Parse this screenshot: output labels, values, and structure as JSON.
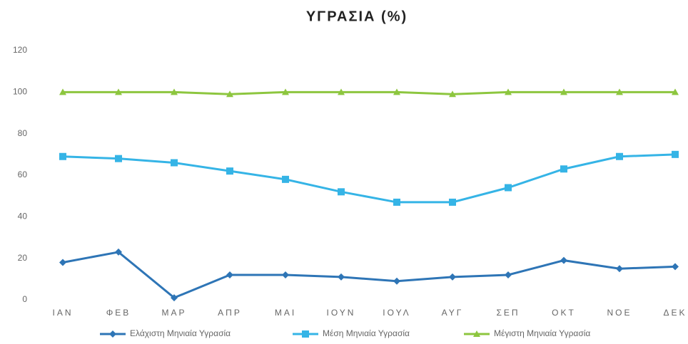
{
  "chart_data": {
    "type": "line",
    "title": "ΥΓΡΑΣΙΑ (%)",
    "categories": [
      "ΙΑΝ",
      "ΦΕΒ",
      "ΜΑΡ",
      "ΑΠΡ",
      "ΜΑΙ",
      "ΙΟΥΝ",
      "ΙΟΥΛ",
      "ΑΥΓ",
      "ΣΕΠ",
      "ΟΚΤ",
      "ΝΟΕ",
      "ΔΕΚ"
    ],
    "series": [
      {
        "name": "Ελάχιστη Μηνιαία Υγρασία",
        "color": "#2e75b6",
        "marker": "diamond",
        "values": [
          18,
          23,
          1,
          12,
          12,
          11,
          9,
          11,
          12,
          19,
          15,
          16
        ]
      },
      {
        "name": "Μέση Μηνιαία Υγρασία",
        "color": "#35b4e6",
        "marker": "square",
        "values": [
          69,
          68,
          66,
          62,
          58,
          52,
          47,
          47,
          54,
          63,
          69,
          70
        ]
      },
      {
        "name": "Μέγιστη Μηνιαία Υγρασία",
        "color": "#8dc63f",
        "marker": "triangle",
        "values": [
          100,
          100,
          100,
          99,
          100,
          100,
          100,
          99,
          100,
          100,
          100,
          100
        ]
      }
    ],
    "ylim": [
      0,
      120
    ],
    "yticks": [
      0,
      20,
      40,
      60,
      80,
      100,
      120
    ],
    "grid": false,
    "legend": "bottom"
  }
}
